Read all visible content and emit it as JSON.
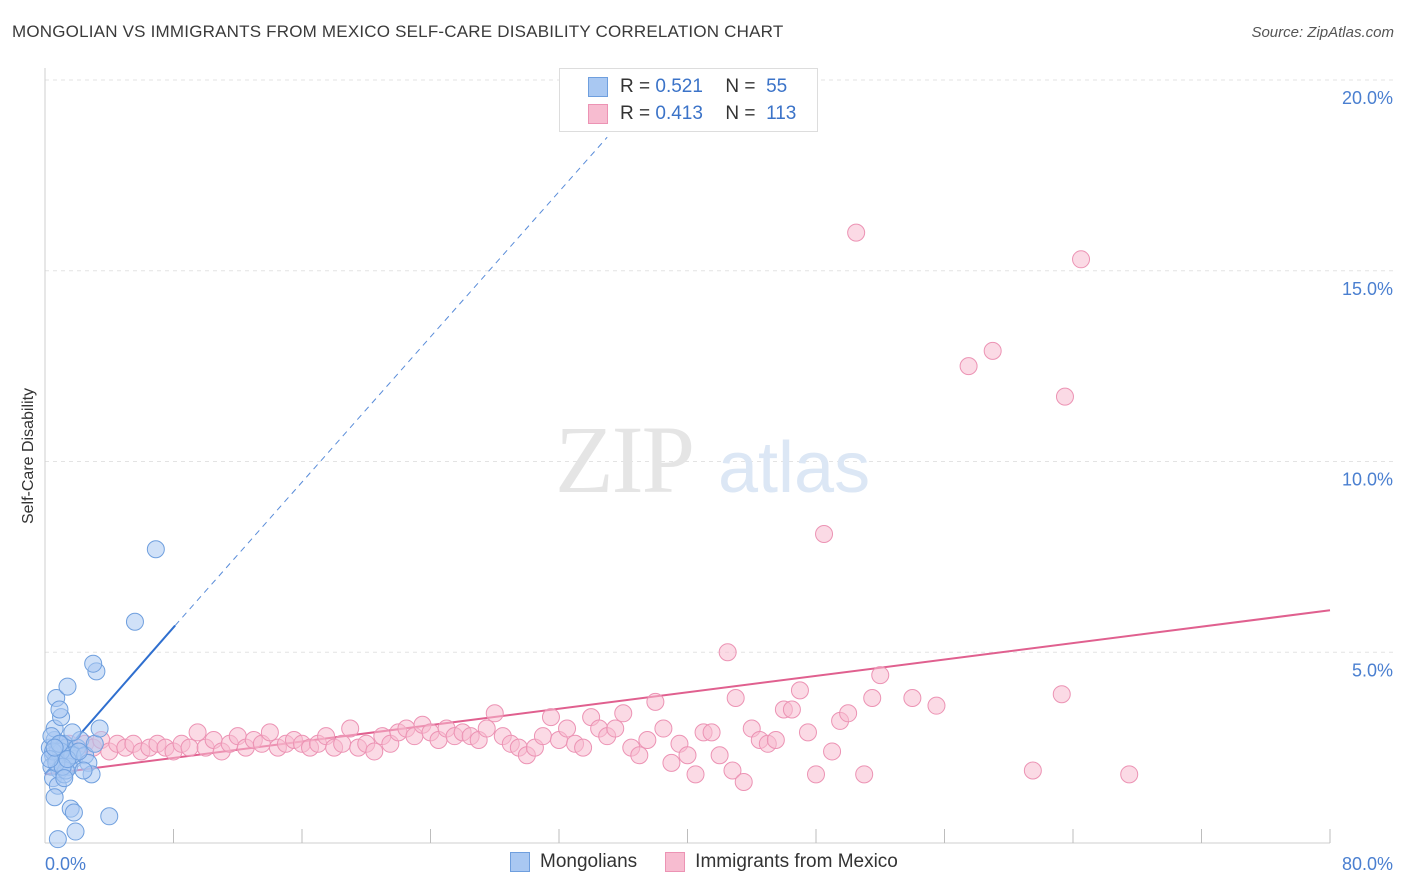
{
  "title": "MONGOLIAN VS IMMIGRANTS FROM MEXICO SELF-CARE DISABILITY CORRELATION CHART",
  "source": "Source: ZipAtlas.com",
  "watermark": {
    "zip": "ZIP",
    "atlas": "atlas"
  },
  "legend": {
    "r_label": "R =",
    "n_label": "N =",
    "series": [
      {
        "r": "0.521",
        "n": "55"
      },
      {
        "r": "0.413",
        "n": "113"
      }
    ]
  },
  "bottom_legend": [
    "Mongolians",
    "Immigrants from Mexico"
  ],
  "colors": {
    "blue_fill": "#a9c8f2",
    "blue_stroke": "#6f9fde",
    "blue_line": "#2f6fcf",
    "pink_fill": "#f7bcd0",
    "pink_stroke": "#ec93b4",
    "pink_line": "#e0608f",
    "tick_text": "#4a7fd0",
    "grid": "#e3e3e3"
  },
  "chart_data": {
    "type": "scatter",
    "title": "MONGOLIAN VS IMMIGRANTS FROM MEXICO SELF-CARE DISABILITY CORRELATION CHART",
    "xlabel": "",
    "ylabel": "Self-Care Disability",
    "xlim": [
      0,
      80
    ],
    "ylim": [
      0,
      20
    ],
    "x_tick_labels": [
      "0.0%",
      "80.0%"
    ],
    "y_ticks": [
      5,
      10,
      15,
      20
    ],
    "y_tick_labels": [
      "5.0%",
      "10.0%",
      "15.0%",
      "20.0%"
    ],
    "series": [
      {
        "name": "Mongolians",
        "r": 0.521,
        "n": 55,
        "trend": {
          "x0": 0,
          "y0": 1.8,
          "x1": 8.1,
          "y1": 5.7,
          "dashed_to_x": 35,
          "dashed_to_y": 18.5
        },
        "points": [
          [
            0.3,
            2.5
          ],
          [
            0.5,
            2.3
          ],
          [
            0.6,
            2.7
          ],
          [
            0.7,
            2.2
          ],
          [
            0.4,
            2.0
          ],
          [
            0.8,
            2.4
          ],
          [
            1.0,
            2.6
          ],
          [
            1.1,
            2.1
          ],
          [
            0.9,
            1.9
          ],
          [
            1.3,
            2.5
          ],
          [
            1.5,
            2.3
          ],
          [
            0.6,
            3.0
          ],
          [
            1.0,
            3.3
          ],
          [
            0.7,
            3.8
          ],
          [
            1.4,
            4.1
          ],
          [
            0.9,
            3.5
          ],
          [
            1.6,
            2.4
          ],
          [
            1.2,
            2.6
          ],
          [
            1.8,
            2.2
          ],
          [
            2.0,
            2.5
          ],
          [
            0.5,
            1.7
          ],
          [
            0.8,
            1.5
          ],
          [
            1.2,
            1.8
          ],
          [
            1.5,
            2.0
          ],
          [
            1.7,
            2.3
          ],
          [
            2.2,
            2.7
          ],
          [
            0.4,
            2.8
          ],
          [
            1.0,
            2.4
          ],
          [
            1.3,
            1.9
          ],
          [
            0.6,
            1.2
          ],
          [
            1.6,
            0.9
          ],
          [
            2.5,
            2.3
          ],
          [
            2.7,
            2.1
          ],
          [
            2.9,
            1.8
          ],
          [
            3.1,
            2.6
          ],
          [
            3.4,
            3.0
          ],
          [
            3.2,
            4.5
          ],
          [
            3.0,
            4.7
          ],
          [
            1.8,
            0.8
          ],
          [
            1.9,
            0.3
          ],
          [
            0.8,
            0.1
          ],
          [
            4.0,
            0.7
          ],
          [
            5.6,
            5.8
          ],
          [
            6.9,
            7.7
          ],
          [
            0.5,
            2.4
          ],
          [
            0.7,
            2.1
          ],
          [
            1.1,
            2.0
          ],
          [
            0.9,
            2.6
          ],
          [
            1.4,
            2.2
          ],
          [
            1.2,
            1.7
          ],
          [
            2.1,
            2.4
          ],
          [
            0.3,
            2.2
          ],
          [
            1.7,
            2.9
          ],
          [
            2.4,
            1.9
          ],
          [
            0.6,
            2.5
          ]
        ]
      },
      {
        "name": "Immigrants from Mexico",
        "r": 0.413,
        "n": 113,
        "trend": {
          "x0": 0,
          "y0": 1.8,
          "x1": 80,
          "y1": 6.1
        },
        "points": [
          [
            1.0,
            2.5
          ],
          [
            1.5,
            2.6
          ],
          [
            2.0,
            2.4
          ],
          [
            2.5,
            2.6
          ],
          [
            3.0,
            2.5
          ],
          [
            3.5,
            2.7
          ],
          [
            4.0,
            2.4
          ],
          [
            4.5,
            2.6
          ],
          [
            5.0,
            2.5
          ],
          [
            5.5,
            2.6
          ],
          [
            6.0,
            2.4
          ],
          [
            6.5,
            2.5
          ],
          [
            7.0,
            2.6
          ],
          [
            7.5,
            2.5
          ],
          [
            8.0,
            2.4
          ],
          [
            8.5,
            2.6
          ],
          [
            9.0,
            2.5
          ],
          [
            9.5,
            2.9
          ],
          [
            10.0,
            2.5
          ],
          [
            10.5,
            2.7
          ],
          [
            11.0,
            2.4
          ],
          [
            11.5,
            2.6
          ],
          [
            12.0,
            2.8
          ],
          [
            12.5,
            2.5
          ],
          [
            13.0,
            2.7
          ],
          [
            13.5,
            2.6
          ],
          [
            14.0,
            2.9
          ],
          [
            14.5,
            2.5
          ],
          [
            15.0,
            2.6
          ],
          [
            15.5,
            2.7
          ],
          [
            16.0,
            2.6
          ],
          [
            16.5,
            2.5
          ],
          [
            17.0,
            2.6
          ],
          [
            17.5,
            2.8
          ],
          [
            18.0,
            2.5
          ],
          [
            18.5,
            2.6
          ],
          [
            19.0,
            3.0
          ],
          [
            19.5,
            2.5
          ],
          [
            20.0,
            2.6
          ],
          [
            20.5,
            2.4
          ],
          [
            21.0,
            2.8
          ],
          [
            21.5,
            2.6
          ],
          [
            22.0,
            2.9
          ],
          [
            22.5,
            3.0
          ],
          [
            23.0,
            2.8
          ],
          [
            23.5,
            3.1
          ],
          [
            24.0,
            2.9
          ],
          [
            24.5,
            2.7
          ],
          [
            25.0,
            3.0
          ],
          [
            25.5,
            2.8
          ],
          [
            26.0,
            2.9
          ],
          [
            26.5,
            2.8
          ],
          [
            27.0,
            2.7
          ],
          [
            27.5,
            3.0
          ],
          [
            28.0,
            3.4
          ],
          [
            28.5,
            2.8
          ],
          [
            29.0,
            2.6
          ],
          [
            29.5,
            2.5
          ],
          [
            30.0,
            2.3
          ],
          [
            30.5,
            2.5
          ],
          [
            31.0,
            2.8
          ],
          [
            31.5,
            3.3
          ],
          [
            32.0,
            2.7
          ],
          [
            32.5,
            3.0
          ],
          [
            33.0,
            2.6
          ],
          [
            33.5,
            2.5
          ],
          [
            34.0,
            3.3
          ],
          [
            34.5,
            3.0
          ],
          [
            35.0,
            2.8
          ],
          [
            35.5,
            3.0
          ],
          [
            36.0,
            3.4
          ],
          [
            36.5,
            2.5
          ],
          [
            37.0,
            2.3
          ],
          [
            37.5,
            2.7
          ],
          [
            38.0,
            3.7
          ],
          [
            38.5,
            3.0
          ],
          [
            39.0,
            2.1
          ],
          [
            39.5,
            2.6
          ],
          [
            40.0,
            2.3
          ],
          [
            40.5,
            1.8
          ],
          [
            41.0,
            2.9
          ],
          [
            41.5,
            2.9
          ],
          [
            42.0,
            2.3
          ],
          [
            42.5,
            5.0
          ],
          [
            42.8,
            1.9
          ],
          [
            43.0,
            3.8
          ],
          [
            43.5,
            1.6
          ],
          [
            44.0,
            3.0
          ],
          [
            44.5,
            2.7
          ],
          [
            45.0,
            2.6
          ],
          [
            45.5,
            2.7
          ],
          [
            46.0,
            3.5
          ],
          [
            46.5,
            3.5
          ],
          [
            47.0,
            4.0
          ],
          [
            47.5,
            2.9
          ],
          [
            48.0,
            1.8
          ],
          [
            48.5,
            8.1
          ],
          [
            49.0,
            2.4
          ],
          [
            49.5,
            3.2
          ],
          [
            50.0,
            3.4
          ],
          [
            50.5,
            16.0
          ],
          [
            51.0,
            1.8
          ],
          [
            51.5,
            3.8
          ],
          [
            52.0,
            4.4
          ],
          [
            54.0,
            3.8
          ],
          [
            55.5,
            3.6
          ],
          [
            57.5,
            12.5
          ],
          [
            59.0,
            12.9
          ],
          [
            61.5,
            1.9
          ],
          [
            63.5,
            11.7
          ],
          [
            63.3,
            3.9
          ],
          [
            64.5,
            15.3
          ],
          [
            67.5,
            1.8
          ]
        ]
      }
    ]
  }
}
